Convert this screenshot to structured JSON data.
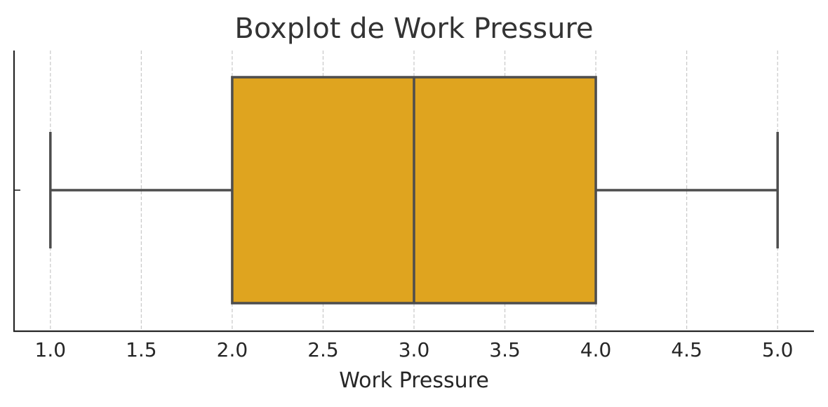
{
  "chart_data": {
    "type": "boxplot",
    "orientation": "horizontal",
    "title": "Boxplot de Work Pressure",
    "xlabel": "Work Pressure",
    "ylabel": "",
    "xlim": [
      0.8,
      5.2
    ],
    "xticks": [
      1.0,
      1.5,
      2.0,
      2.5,
      3.0,
      3.5,
      4.0,
      4.5,
      5.0
    ],
    "xtick_labels": [
      "1.0",
      "1.5",
      "2.0",
      "2.5",
      "3.0",
      "3.5",
      "4.0",
      "4.5",
      "5.0"
    ],
    "grid": "x-dashed",
    "box": {
      "whisker_low": 1.0,
      "q1": 2.0,
      "median": 3.0,
      "q3": 4.0,
      "whisker_high": 5.0
    },
    "colors": {
      "box_fill": "#DFA41F",
      "line": "#4D4D4D",
      "grid": "#C8C8C8",
      "axis": "#262626",
      "title": "#333333"
    }
  }
}
